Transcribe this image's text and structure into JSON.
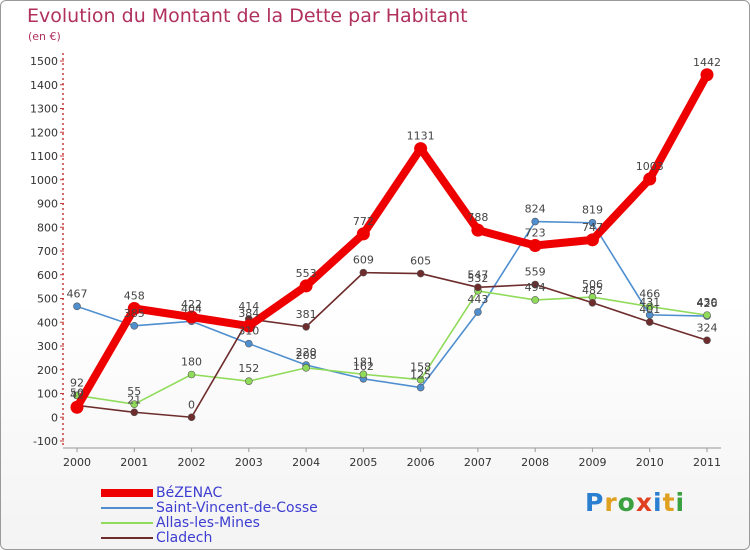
{
  "title": "Evolution du Montant de la Dette par Habitant",
  "unit": "(en €)",
  "logo": {
    "text": "Proxiti"
  },
  "colors": {
    "BéZENAC": "#ee0000",
    "Saint-Vincent-de-Cosse": "#4f8fcf",
    "Allas-les-Mines": "#90db5a",
    "Cladech": "#6e2c2c"
  },
  "chart_data": {
    "type": "line",
    "title": "Evolution du Montant de la Dette par Habitant",
    "ylabel": "(en €)",
    "xlabel": "",
    "x": [
      "2000",
      "2001",
      "2002",
      "2003",
      "2004",
      "2005",
      "2006",
      "2007",
      "2008",
      "2009",
      "2010",
      "2011"
    ],
    "ylim": [
      -100,
      1500
    ],
    "yticks": [
      -100,
      0,
      100,
      200,
      300,
      400,
      500,
      600,
      700,
      800,
      900,
      1000,
      1100,
      1200,
      1300,
      1400,
      1500
    ],
    "grid": false,
    "legend_position": "bottom-left",
    "series": [
      {
        "name": "BéZENAC",
        "values": [
          42,
          458,
          422,
          384,
          553,
          772,
          1131,
          788,
          723,
          747,
          1003,
          1442
        ]
      },
      {
        "name": "Saint-Vincent-de-Cosse",
        "values": [
          467,
          385,
          404,
          310,
          220,
          162,
          125,
          443,
          824,
          819,
          431,
          426
        ]
      },
      {
        "name": "Allas-les-Mines",
        "values": [
          92,
          55,
          180,
          152,
          208,
          181,
          158,
          532,
          494,
          506,
          466,
          430
        ]
      },
      {
        "name": "Cladech",
        "values": [
          50,
          21,
          0,
          414,
          381,
          609,
          605,
          547,
          559,
          482,
          401,
          324
        ]
      }
    ]
  }
}
